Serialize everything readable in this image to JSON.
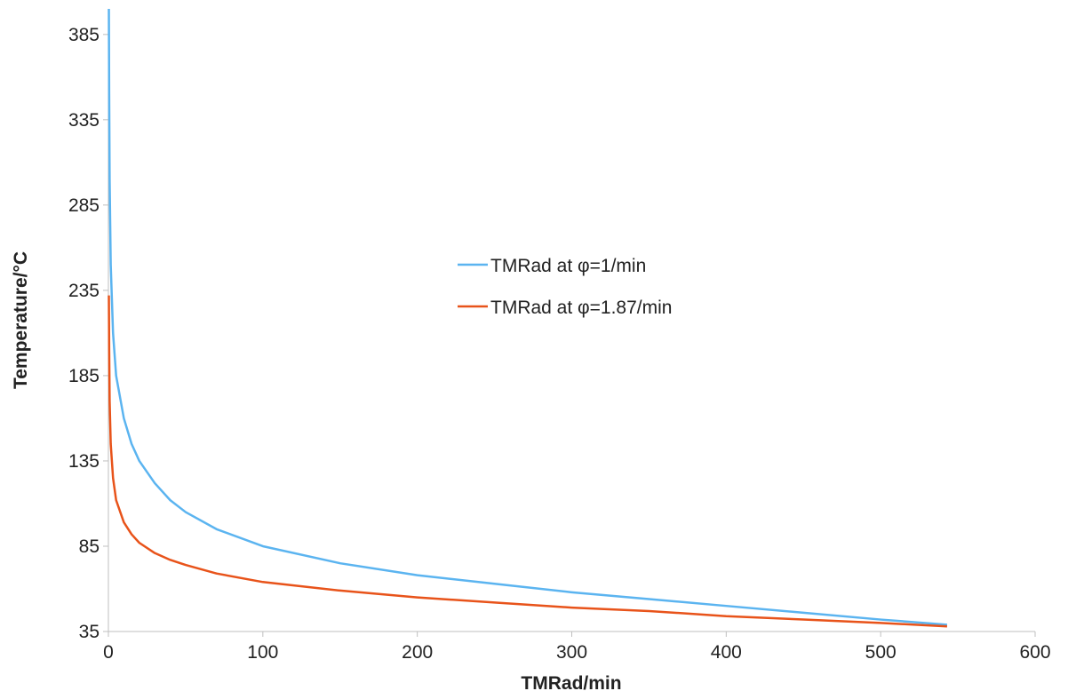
{
  "chart_data": {
    "type": "line",
    "title": "",
    "xlabel": "TMRad/min",
    "ylabel": "Temperature/°C",
    "xlim": [
      0,
      600
    ],
    "ylim": [
      35,
      400
    ],
    "xticks": [
      0,
      100,
      200,
      300,
      400,
      500,
      600
    ],
    "yticks": [
      35,
      85,
      135,
      185,
      235,
      285,
      335,
      385
    ],
    "grid": false,
    "legend_position": "center-right",
    "series": [
      {
        "name": "TMRad at φ=1/min",
        "color": "#5BB4F0",
        "points": [
          [
            0.3,
            400
          ],
          [
            0.5,
            350
          ],
          [
            0.8,
            300
          ],
          [
            1.5,
            250
          ],
          [
            3,
            210
          ],
          [
            5,
            185
          ],
          [
            10,
            160
          ],
          [
            15,
            145
          ],
          [
            20,
            135
          ],
          [
            30,
            122
          ],
          [
            40,
            112
          ],
          [
            50,
            105
          ],
          [
            70,
            95
          ],
          [
            100,
            85
          ],
          [
            150,
            75
          ],
          [
            200,
            68
          ],
          [
            250,
            63
          ],
          [
            300,
            58
          ],
          [
            350,
            54
          ],
          [
            400,
            50
          ],
          [
            450,
            46
          ],
          [
            500,
            42
          ],
          [
            543,
            39
          ]
        ]
      },
      {
        "name": "TMRad at φ=1.87/min",
        "color": "#E8531A",
        "points": [
          [
            0.3,
            232
          ],
          [
            0.5,
            200
          ],
          [
            0.8,
            170
          ],
          [
            1.5,
            145
          ],
          [
            3,
            125
          ],
          [
            5,
            112
          ],
          [
            10,
            99
          ],
          [
            15,
            92
          ],
          [
            20,
            87
          ],
          [
            30,
            81
          ],
          [
            40,
            77
          ],
          [
            50,
            74
          ],
          [
            70,
            69
          ],
          [
            100,
            64
          ],
          [
            150,
            59
          ],
          [
            200,
            55
          ],
          [
            250,
            52
          ],
          [
            300,
            49
          ],
          [
            350,
            47
          ],
          [
            400,
            44
          ],
          [
            450,
            42
          ],
          [
            500,
            40
          ],
          [
            543,
            38
          ]
        ]
      }
    ]
  }
}
